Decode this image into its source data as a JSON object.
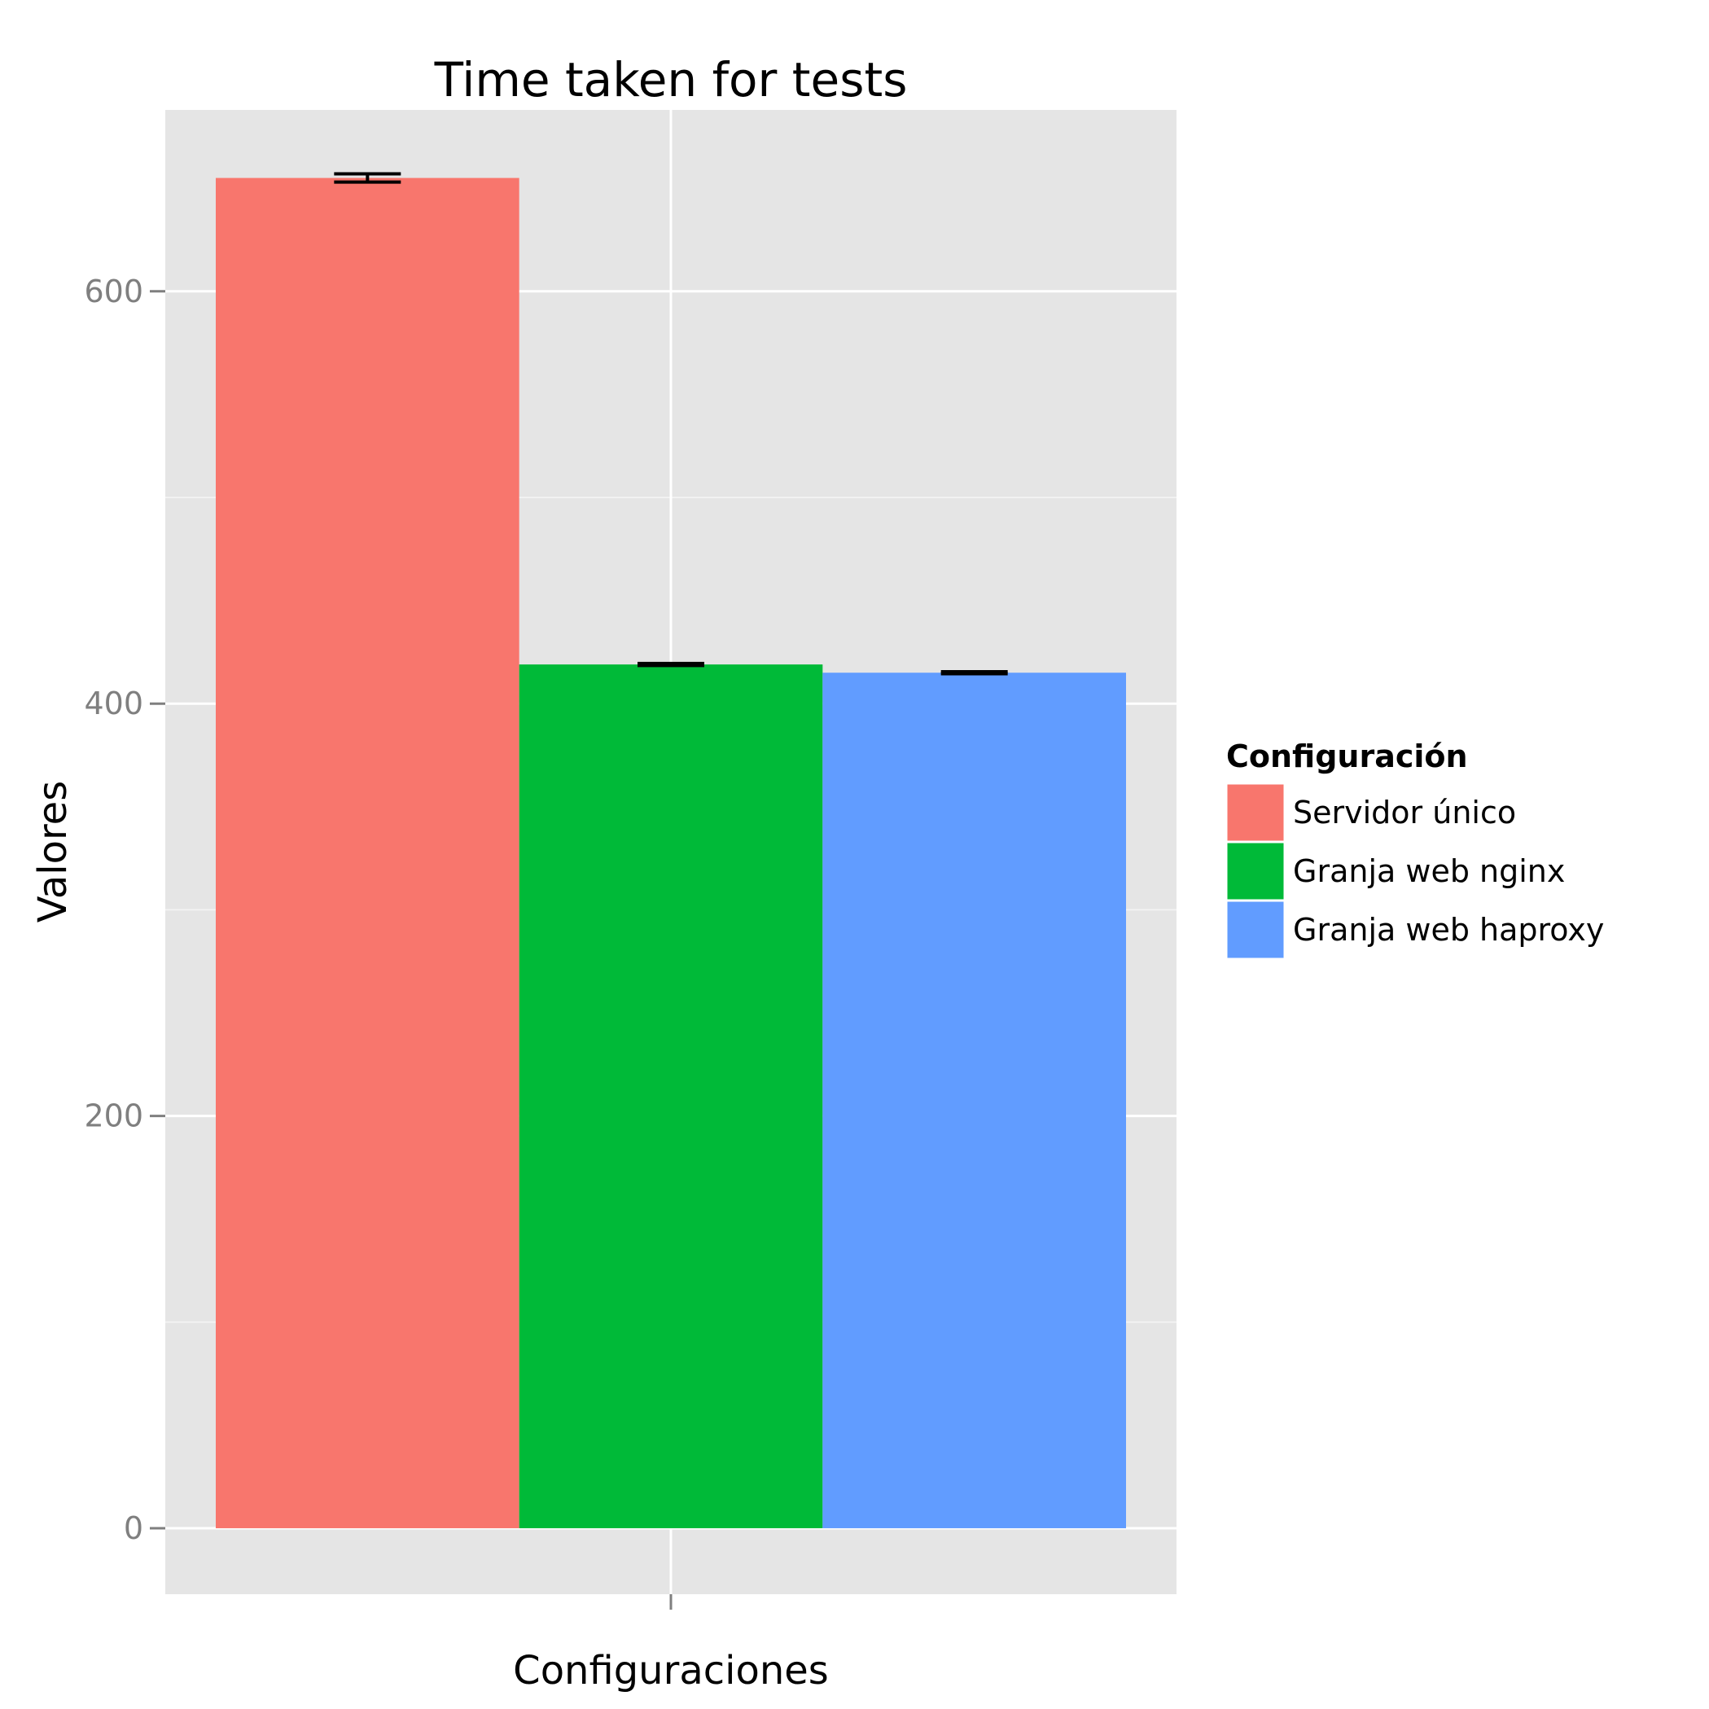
{
  "chart_data": {
    "type": "bar",
    "title": "Time taken for tests",
    "xlabel": "Configuraciones",
    "ylabel": "Valores",
    "ylim": [
      -32,
      688
    ],
    "yticks": [
      0,
      200,
      400,
      600
    ],
    "grid": true,
    "legend": {
      "title": "Configuración",
      "placement": "right"
    },
    "series": [
      {
        "name": "Servidor único",
        "value": 655,
        "error": 2,
        "color": "#F8766D"
      },
      {
        "name": "Granja web nginx",
        "value": 419,
        "error": 0.5,
        "color": "#00BA38"
      },
      {
        "name": "Granja web haproxy",
        "value": 415,
        "error": 0.5,
        "color": "#619CFF"
      }
    ]
  }
}
